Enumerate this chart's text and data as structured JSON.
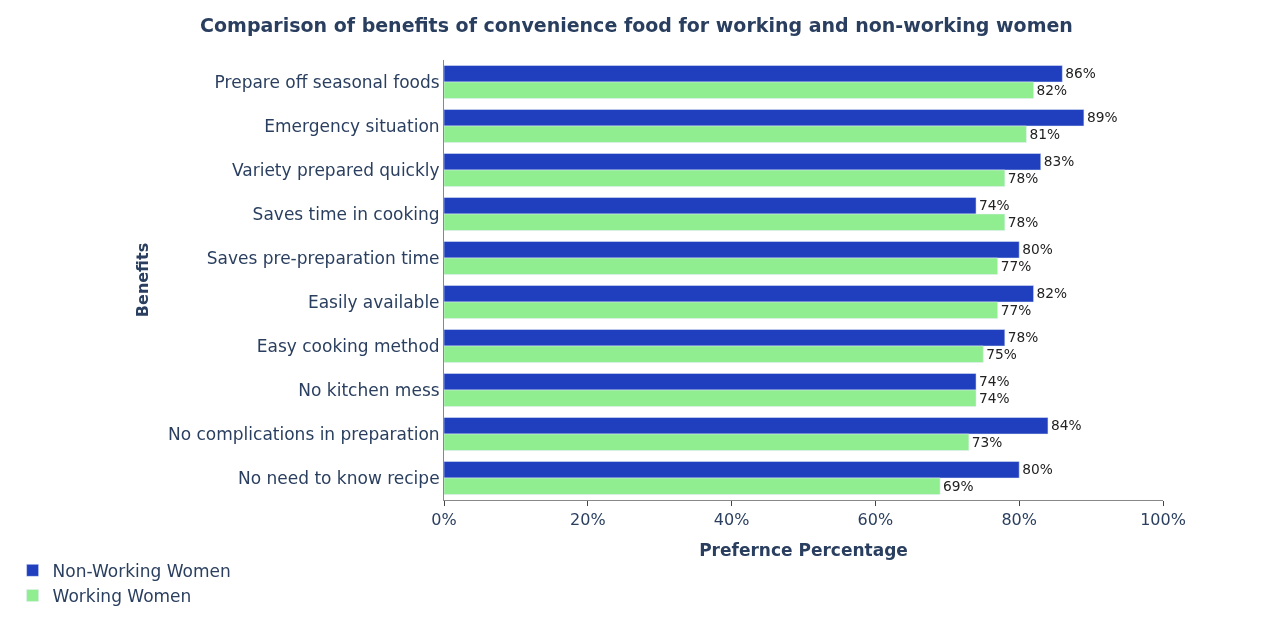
{
  "chart_data": {
    "type": "bar",
    "orientation": "horizontal",
    "title": "Comparison of benefits of convenience food for working and non-working women",
    "xlabel": "Prefernce Percentage",
    "ylabel": "Benefits",
    "categories": [
      "Prepare off seasonal foods",
      "Emergency situation",
      "Variety prepared quickly",
      "Saves time in cooking",
      "Saves pre-preparation time",
      "Easily available",
      "Easy cooking method",
      "No kitchen mess",
      "No complications in preparation",
      "No need to know recipe"
    ],
    "series": [
      {
        "name": "Non-Working Women",
        "color": "#1f3fbf",
        "values": [
          86,
          89,
          83,
          74,
          80,
          82,
          78,
          74,
          84,
          80
        ],
        "value_labels": [
          "86%",
          "89%",
          "83%",
          "74%",
          "80%",
          "82%",
          "78%",
          "74%",
          "84%",
          "80%"
        ]
      },
      {
        "name": "Working Women",
        "color": "#90ee90",
        "values": [
          82,
          81,
          78,
          78,
          77,
          77,
          75,
          74,
          73,
          69
        ],
        "value_labels": [
          "82%",
          "81%",
          "78%",
          "78%",
          "77%",
          "77%",
          "75%",
          "74%",
          "73%",
          "69%"
        ]
      }
    ],
    "xlim": [
      0,
      100
    ],
    "xticks": [
      {
        "value": 0,
        "label": "0%"
      },
      {
        "value": 20,
        "label": "20%"
      },
      {
        "value": 40,
        "label": "40%"
      },
      {
        "value": 60,
        "label": "60%"
      },
      {
        "value": 80,
        "label": "80%"
      },
      {
        "value": 100,
        "label": "100%"
      }
    ],
    "legend": "bottom left"
  }
}
